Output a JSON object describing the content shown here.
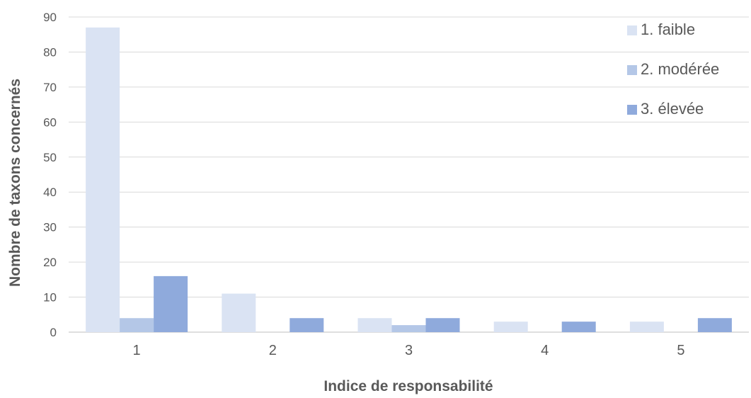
{
  "chart_data": {
    "type": "bar",
    "xlabel": "Indice de responsabilité",
    "ylabel": "Nombre de taxons concernés",
    "categories": [
      "1",
      "2",
      "3",
      "4",
      "5"
    ],
    "ylim": [
      0,
      90
    ],
    "yticks": [
      "0",
      "10",
      "20",
      "30",
      "40",
      "50",
      "60",
      "70",
      "80",
      "90"
    ],
    "grid": true,
    "legend_position": "top-right",
    "series": [
      {
        "name": "1. faible",
        "color": "#dae3f3",
        "values": [
          87,
          11,
          4,
          3,
          3
        ]
      },
      {
        "name": "2. modérée",
        "color": "#b4c7e7",
        "values": [
          4,
          0,
          2,
          0,
          0
        ]
      },
      {
        "name": "3. élevée",
        "color": "#8faadc",
        "values": [
          16,
          4,
          4,
          3,
          4
        ]
      }
    ]
  }
}
